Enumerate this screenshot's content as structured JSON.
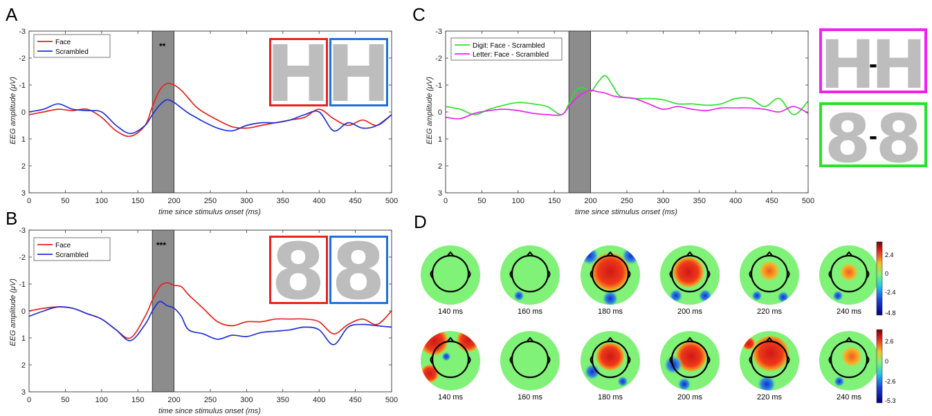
{
  "panels": {
    "a": {
      "letter": "A",
      "legend": [
        "Face",
        "Scrambled"
      ],
      "significance": "**",
      "xlabel": "time since stimulus onset (ms)",
      "ylabel": "EEG amplitude (μV)",
      "stimulus_glyphs": [
        "H",
        "H"
      ]
    },
    "b": {
      "letter": "B",
      "legend": [
        "Face",
        "Scrambled"
      ],
      "significance": "***",
      "xlabel": "time since stimulus onset (ms)",
      "ylabel": "EEG amplitude (μV)",
      "stimulus_glyphs": [
        "8",
        "8"
      ]
    },
    "c": {
      "letter": "C",
      "legend": [
        "Digit: Face - Scrambled",
        "Letter: Face - Scrambled"
      ],
      "xlabel": "time since stimulus onset (ms)",
      "ylabel": "EEG amplitude (μV)",
      "stimulus_glyphs": [
        [
          "H",
          "-",
          "H"
        ],
        [
          "8",
          "-",
          "8"
        ]
      ]
    },
    "d": {
      "letter": "D",
      "time_labels": [
        "140 ms",
        "160 ms",
        "180 ms",
        "200 ms",
        "220 ms",
        "240 ms"
      ],
      "colorbar_top": [
        "2.4",
        "0",
        "-2.4",
        "-4.8"
      ],
      "colorbar_bottom": [
        "2.6",
        "0",
        "-2.6",
        "-5.3"
      ]
    }
  },
  "colors": {
    "face": "#e8211c",
    "scrambled": "#1f2fd6",
    "digit_diff": "#29e229",
    "letter_diff": "#ee22ee",
    "shade": "#8c8c8c",
    "topo_green": "#80f278",
    "frame_blue": "#1e6fe0"
  },
  "chart_data": [
    {
      "panel": "A",
      "type": "line",
      "xlabel": "time since stimulus onset (ms)",
      "ylabel": "EEG amplitude (μV)",
      "xlim": [
        0,
        500
      ],
      "ylim": [
        3,
        -3
      ],
      "y_reversed": true,
      "xticks": [
        0,
        50,
        100,
        150,
        200,
        250,
        300,
        350,
        400,
        450,
        500
      ],
      "yticks": [
        -3,
        -2,
        -1,
        0,
        1,
        2,
        3
      ],
      "shaded_window": [
        170,
        200
      ],
      "annotation": "**",
      "legend_position": "top-left",
      "series": [
        {
          "name": "Face",
          "x": [
            0,
            20,
            40,
            60,
            80,
            100,
            120,
            140,
            160,
            170,
            180,
            190,
            200,
            210,
            220,
            230,
            240,
            260,
            280,
            300,
            320,
            340,
            360,
            380,
            400,
            420,
            440,
            460,
            480,
            500
          ],
          "y": [
            0.1,
            0.0,
            -0.1,
            -0.05,
            -0.1,
            0.2,
            0.7,
            0.9,
            0.5,
            -0.2,
            -0.8,
            -1.05,
            -1.0,
            -0.8,
            -0.5,
            -0.2,
            0.0,
            0.3,
            0.55,
            0.6,
            0.5,
            0.4,
            0.3,
            0.2,
            -0.1,
            0.25,
            0.5,
            0.3,
            0.5,
            0.1
          ]
        },
        {
          "name": "Scrambled",
          "x": [
            0,
            20,
            40,
            60,
            80,
            100,
            120,
            140,
            160,
            170,
            180,
            190,
            200,
            210,
            220,
            230,
            240,
            260,
            280,
            300,
            320,
            340,
            360,
            380,
            400,
            420,
            440,
            460,
            480,
            500
          ],
          "y": [
            0.0,
            -0.1,
            -0.3,
            -0.1,
            -0.05,
            0.0,
            0.5,
            0.8,
            0.5,
            0.1,
            -0.25,
            -0.45,
            -0.35,
            -0.15,
            0.05,
            0.2,
            0.35,
            0.6,
            0.7,
            0.5,
            0.4,
            0.4,
            0.3,
            0.1,
            0.0,
            0.7,
            0.4,
            0.6,
            0.5,
            0.1
          ]
        }
      ]
    },
    {
      "panel": "B",
      "type": "line",
      "xlabel": "time since stimulus onset (ms)",
      "ylabel": "EEG amplitude (μV)",
      "xlim": [
        0,
        500
      ],
      "ylim": [
        3,
        -3
      ],
      "y_reversed": true,
      "xticks": [
        0,
        50,
        100,
        150,
        200,
        250,
        300,
        350,
        400,
        450,
        500
      ],
      "yticks": [
        -3,
        -2,
        -1,
        0,
        1,
        2,
        3
      ],
      "shaded_window": [
        170,
        200
      ],
      "annotation": "***",
      "legend_position": "top-left",
      "series": [
        {
          "name": "Face",
          "x": [
            0,
            20,
            40,
            60,
            80,
            100,
            120,
            140,
            160,
            170,
            180,
            190,
            200,
            210,
            220,
            240,
            260,
            280,
            300,
            320,
            340,
            360,
            380,
            400,
            420,
            440,
            460,
            480,
            500
          ],
          "y": [
            0.0,
            -0.1,
            -0.15,
            -0.1,
            0.1,
            0.3,
            0.7,
            1.0,
            0.2,
            -0.4,
            -0.9,
            -1.05,
            -0.95,
            -0.9,
            -0.6,
            -0.1,
            0.4,
            0.55,
            0.4,
            0.4,
            0.3,
            0.3,
            0.3,
            0.4,
            0.85,
            0.5,
            0.3,
            0.5,
            0.0
          ]
        },
        {
          "name": "Scrambled",
          "x": [
            0,
            20,
            40,
            60,
            80,
            100,
            120,
            140,
            160,
            170,
            180,
            190,
            200,
            210,
            220,
            240,
            260,
            280,
            300,
            320,
            340,
            360,
            380,
            400,
            420,
            440,
            460,
            480,
            500
          ],
          "y": [
            0.2,
            0.0,
            -0.15,
            -0.1,
            0.1,
            0.3,
            0.7,
            1.1,
            0.5,
            0.0,
            -0.35,
            -0.2,
            -0.1,
            0.2,
            0.7,
            0.85,
            1.05,
            0.9,
            0.95,
            0.8,
            0.75,
            0.7,
            0.6,
            0.7,
            1.25,
            0.6,
            0.5,
            0.55,
            0.6
          ]
        }
      ]
    },
    {
      "panel": "C",
      "type": "line",
      "xlabel": "time since stimulus onset (ms)",
      "ylabel": "EEG amplitude (μV)",
      "xlim": [
        0,
        500
      ],
      "ylim": [
        3,
        -3
      ],
      "y_reversed": true,
      "xticks": [
        0,
        50,
        100,
        150,
        200,
        250,
        300,
        350,
        400,
        450,
        500
      ],
      "yticks": [
        -3,
        -2,
        -1,
        0,
        1,
        2,
        3
      ],
      "shaded_window": [
        170,
        200
      ],
      "legend_position": "top-left",
      "series": [
        {
          "name": "Digit: Face - Scrambled",
          "x": [
            0,
            20,
            40,
            60,
            80,
            100,
            120,
            140,
            160,
            170,
            180,
            190,
            200,
            210,
            220,
            230,
            240,
            260,
            280,
            300,
            320,
            340,
            360,
            380,
            400,
            420,
            440,
            460,
            480,
            500
          ],
          "y": [
            -0.2,
            -0.1,
            0.1,
            -0.1,
            -0.25,
            -0.35,
            -0.3,
            -0.2,
            0.1,
            -0.3,
            -0.8,
            -0.9,
            -0.75,
            -1.1,
            -1.35,
            -1.0,
            -0.6,
            -0.5,
            -0.5,
            -0.45,
            -0.3,
            -0.3,
            -0.25,
            -0.3,
            -0.5,
            -0.5,
            -0.2,
            -0.5,
            0.1,
            -0.4
          ]
        },
        {
          "name": "Letter: Face - Scrambled",
          "x": [
            0,
            20,
            40,
            60,
            80,
            100,
            120,
            140,
            160,
            170,
            180,
            190,
            200,
            210,
            220,
            230,
            240,
            260,
            280,
            300,
            320,
            340,
            360,
            380,
            400,
            420,
            440,
            460,
            480,
            500
          ],
          "y": [
            0.2,
            0.25,
            0.05,
            -0.05,
            -0.1,
            -0.05,
            0.05,
            0.1,
            0.1,
            -0.2,
            -0.5,
            -0.7,
            -0.8,
            -0.75,
            -0.7,
            -0.6,
            -0.55,
            -0.5,
            -0.3,
            -0.1,
            -0.2,
            -0.1,
            -0.05,
            -0.15,
            -0.15,
            -0.15,
            -0.1,
            0.0,
            -0.2,
            0.05
          ]
        }
      ]
    }
  ]
}
